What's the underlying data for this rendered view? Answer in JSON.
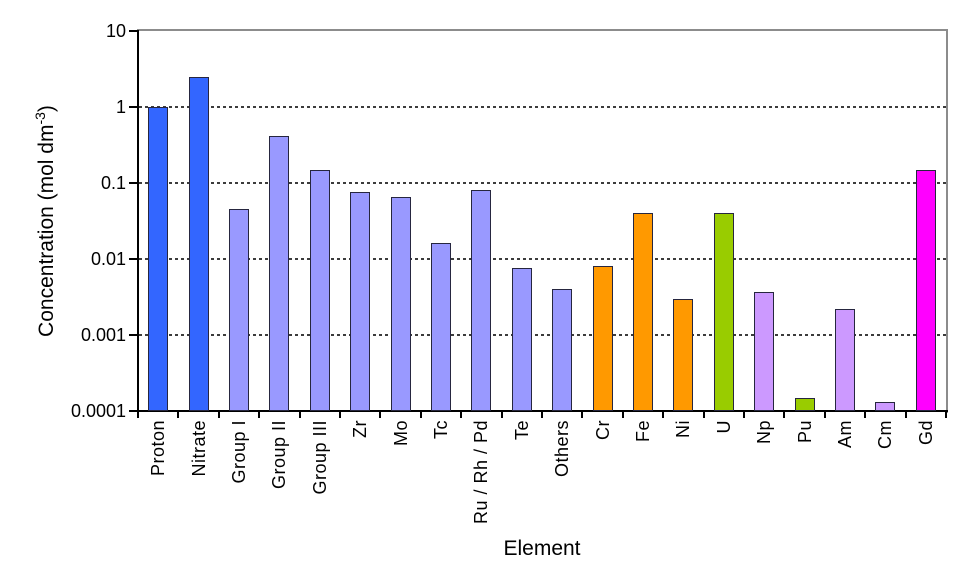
{
  "chart_data": {
    "type": "bar",
    "title": "",
    "xlabel": "Element",
    "ylabel": "Concentration (mol dm-3)",
    "ylabel_parts": {
      "pre": "Concentration (mol dm",
      "sup": "-3",
      "post": ")"
    },
    "y_scale": "log",
    "ylim": [
      0.0001,
      10
    ],
    "y_tick_values": [
      10,
      1,
      0.1,
      0.01,
      0.001,
      0.0001
    ],
    "y_tick_labels": [
      "10",
      "1",
      "0.1",
      "0.01",
      "0.001",
      "0.0001"
    ],
    "grid": "horizontal dashed at each decade",
    "legend": "none",
    "categories": [
      "Proton",
      "Nitrate",
      "Group I",
      "Group II",
      "Group III",
      "Zr",
      "Mo",
      "Tc",
      "Ru / Rh / Pd",
      "Te",
      "Others",
      "Cr",
      "Fe",
      "Ni",
      "U",
      "Np",
      "Pu",
      "Am",
      "Cm",
      "Gd"
    ],
    "values": [
      1.0,
      2.5,
      0.045,
      0.42,
      0.15,
      0.075,
      0.065,
      0.016,
      0.08,
      0.0075,
      0.004,
      0.008,
      0.04,
      0.003,
      0.04,
      0.0037,
      0.00015,
      0.0022,
      0.00013,
      0.15
    ],
    "bar_colors": [
      "#3366FF",
      "#3366FF",
      "#9999FF",
      "#9999FF",
      "#9999FF",
      "#9999FF",
      "#9999FF",
      "#9999FF",
      "#9999FF",
      "#9999FF",
      "#9999FF",
      "#FF9900",
      "#FF9900",
      "#FF9900",
      "#99CC00",
      "#CC99FF",
      "#99CC00",
      "#CC99FF",
      "#CC99FF",
      "#FF00FF"
    ],
    "colors": {
      "blue": "#3366FF",
      "periwinkle": "#9999FF",
      "orange": "#FF9900",
      "lime_green": "#99CC00",
      "lavender": "#CC99FF",
      "magenta": "#FF00FF",
      "bar_border": "#26263f",
      "axis": "#000000",
      "frame_gray": "#8c8c8c",
      "background": "#ffffff"
    }
  }
}
